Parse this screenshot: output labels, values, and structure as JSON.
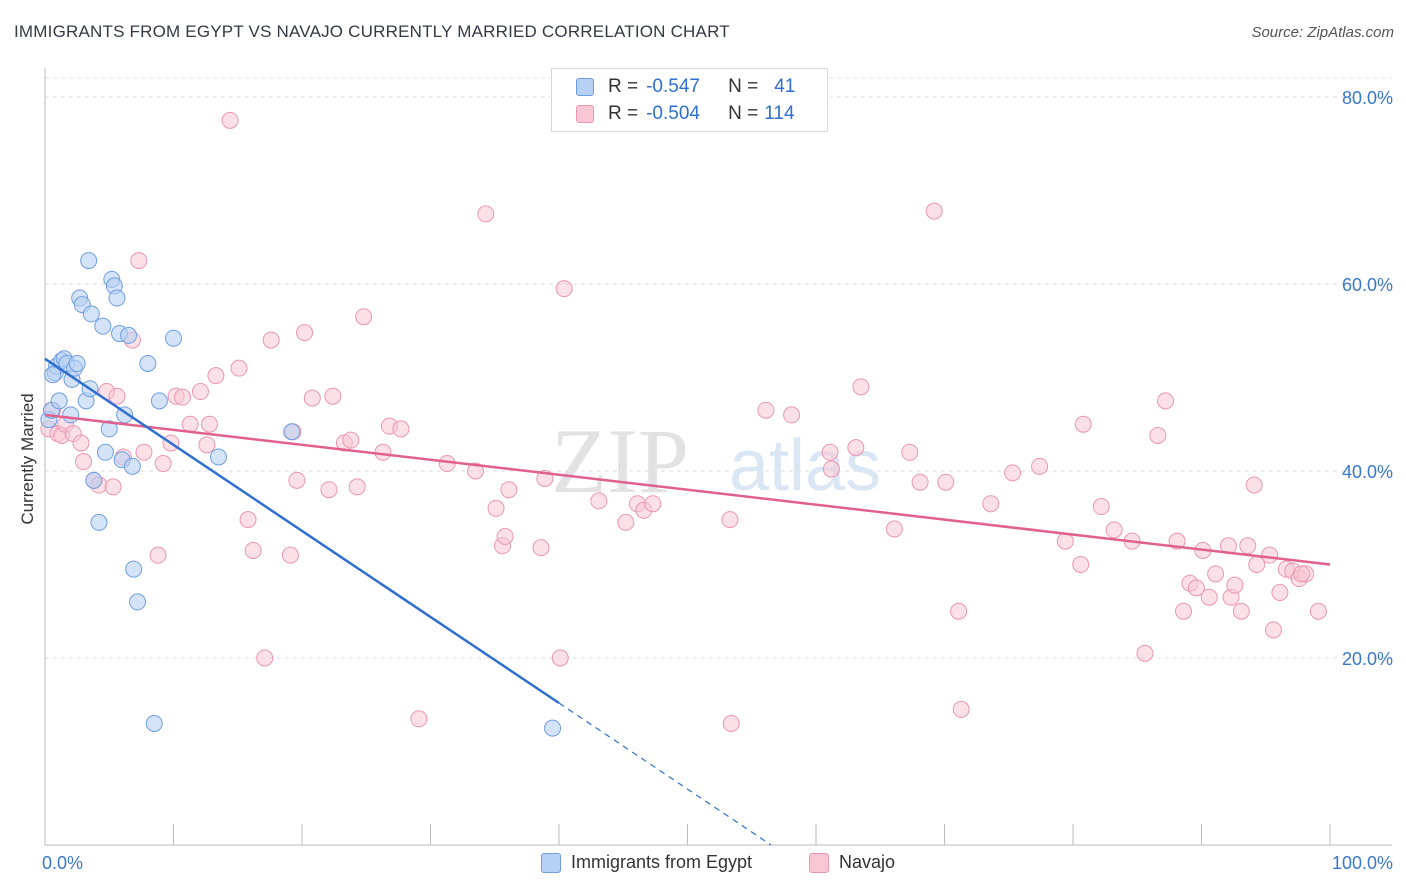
{
  "title": "IMMIGRANTS FROM EGYPT VS NAVAJO CURRENTLY MARRIED CORRELATION CHART",
  "source": "Source: ZipAtlas.com",
  "watermark": {
    "zip": "ZIP",
    "atlas": "atlas"
  },
  "legend": {
    "rows": [
      {
        "r_label": "R =",
        "r_value": "-0.547",
        "n_label": "N =",
        "n_value": "41"
      },
      {
        "r_label": "R =",
        "r_value": "-0.504",
        "n_label": "N =",
        "n_value": "114"
      }
    ]
  },
  "bottom_legend": {
    "series1": "Immigrants from Egypt",
    "series2": "Navajo"
  },
  "colors": {
    "blue_fill": "#b7d1f4",
    "blue_stroke": "#6f9ee0",
    "blue_line": "#2f6fd0",
    "pink_fill": "#f8c6d4",
    "pink_stroke": "#ea97b1",
    "pink_line": "#e0608e",
    "axis_label": "#3a78c9"
  },
  "chart_data": {
    "type": "scatter",
    "title": "IMMIGRANTS FROM EGYPT VS NAVAJO CURRENTLY MARRIED CORRELATION CHART",
    "xlabel": "",
    "ylabel": "Currently Married",
    "xlim": [
      0,
      100
    ],
    "ylim": [
      0,
      80
    ],
    "x_tick_labels": [
      "0.0%",
      "100.0%"
    ],
    "y_ticks": [
      20,
      40,
      60,
      80
    ],
    "y_tick_labels": [
      "20.0%",
      "40.0%",
      "60.0%",
      "80.0%"
    ],
    "series": [
      {
        "name": "Immigrants from Egypt",
        "r": -0.547,
        "n": 41,
        "trend": {
          "x_start": 0,
          "y_start": 52.0,
          "x_solid_end": 40,
          "x_end": 56.5,
          "y_end": 0
        },
        "points": [
          [
            0.3,
            45.5
          ],
          [
            0.5,
            46.5
          ],
          [
            0.8,
            50.5
          ],
          [
            0.9,
            51.2
          ],
          [
            1.1,
            47.5
          ],
          [
            1.3,
            51.8
          ],
          [
            1.5,
            52.0
          ],
          [
            1.7,
            51.5
          ],
          [
            2.0,
            46.0
          ],
          [
            2.1,
            49.8
          ],
          [
            2.3,
            51.0
          ],
          [
            2.5,
            51.5
          ],
          [
            2.7,
            58.5
          ],
          [
            2.9,
            57.8
          ],
          [
            3.2,
            47.5
          ],
          [
            3.4,
            62.5
          ],
          [
            3.5,
            48.8
          ],
          [
            3.6,
            56.8
          ],
          [
            3.8,
            39.0
          ],
          [
            4.2,
            34.5
          ],
          [
            4.5,
            55.5
          ],
          [
            4.7,
            42.0
          ],
          [
            5.0,
            44.5
          ],
          [
            5.2,
            60.5
          ],
          [
            5.4,
            59.8
          ],
          [
            5.6,
            58.5
          ],
          [
            5.8,
            54.7
          ],
          [
            6.0,
            41.2
          ],
          [
            6.2,
            46.0
          ],
          [
            6.5,
            54.5
          ],
          [
            6.8,
            40.5
          ],
          [
            6.9,
            29.5
          ],
          [
            7.2,
            26.0
          ],
          [
            8.0,
            51.5
          ],
          [
            8.5,
            13.0
          ],
          [
            8.9,
            47.5
          ],
          [
            10.0,
            54.2
          ],
          [
            13.5,
            41.5
          ],
          [
            19.2,
            44.2
          ],
          [
            39.5,
            12.5
          ],
          [
            0.6,
            50.3
          ]
        ]
      },
      {
        "name": "Navajo",
        "r": -0.504,
        "n": 114,
        "trend": {
          "x_start": 0,
          "y_start": 46.0,
          "x_end": 100,
          "y_end": 30.0
        },
        "points": [
          [
            0.3,
            44.5
          ],
          [
            0.6,
            46.5
          ],
          [
            1.0,
            44.0
          ],
          [
            1.3,
            43.8
          ],
          [
            1.6,
            45.0
          ],
          [
            2.2,
            44.0
          ],
          [
            2.8,
            43.0
          ],
          [
            3.0,
            41.0
          ],
          [
            3.8,
            39.0
          ],
          [
            4.2,
            38.5
          ],
          [
            4.8,
            48.5
          ],
          [
            5.3,
            38.3
          ],
          [
            5.6,
            48.0
          ],
          [
            6.1,
            41.5
          ],
          [
            6.8,
            54.0
          ],
          [
            7.3,
            62.5
          ],
          [
            7.7,
            42.0
          ],
          [
            8.8,
            31.0
          ],
          [
            9.2,
            40.8
          ],
          [
            9.8,
            43.0
          ],
          [
            10.2,
            48.0
          ],
          [
            10.7,
            47.9
          ],
          [
            11.3,
            45.0
          ],
          [
            12.1,
            48.5
          ],
          [
            12.6,
            42.8
          ],
          [
            12.8,
            45.0
          ],
          [
            13.3,
            50.2
          ],
          [
            14.4,
            77.5
          ],
          [
            15.1,
            51.0
          ],
          [
            15.8,
            34.8
          ],
          [
            16.2,
            31.5
          ],
          [
            17.1,
            20.0
          ],
          [
            17.6,
            54.0
          ],
          [
            19.1,
            31.0
          ],
          [
            19.3,
            44.2
          ],
          [
            19.6,
            39.0
          ],
          [
            20.2,
            54.8
          ],
          [
            20.8,
            47.8
          ],
          [
            22.1,
            38.0
          ],
          [
            22.4,
            48.0
          ],
          [
            23.3,
            43.0
          ],
          [
            23.8,
            43.3
          ],
          [
            24.3,
            38.3
          ],
          [
            24.8,
            56.5
          ],
          [
            26.3,
            42.0
          ],
          [
            26.8,
            44.8
          ],
          [
            27.7,
            44.5
          ],
          [
            29.1,
            13.5
          ],
          [
            31.3,
            40.8
          ],
          [
            33.5,
            40.0
          ],
          [
            34.3,
            67.5
          ],
          [
            35.1,
            36.0
          ],
          [
            35.6,
            32.0
          ],
          [
            35.8,
            33.0
          ],
          [
            36.1,
            38.0
          ],
          [
            38.6,
            31.8
          ],
          [
            38.9,
            39.2
          ],
          [
            40.1,
            20.0
          ],
          [
            40.4,
            59.5
          ],
          [
            43.1,
            36.8
          ],
          [
            45.2,
            34.5
          ],
          [
            46.1,
            36.5
          ],
          [
            46.6,
            35.8
          ],
          [
            47.3,
            36.5
          ],
          [
            53.3,
            34.8
          ],
          [
            53.4,
            13.0
          ],
          [
            56.1,
            46.5
          ],
          [
            58.1,
            46.0
          ],
          [
            61.1,
            42.0
          ],
          [
            61.2,
            40.2
          ],
          [
            63.1,
            42.5
          ],
          [
            63.5,
            49.0
          ],
          [
            66.1,
            33.8
          ],
          [
            67.3,
            42.0
          ],
          [
            68.1,
            38.8
          ],
          [
            69.2,
            67.8
          ],
          [
            70.1,
            38.8
          ],
          [
            71.1,
            25.0
          ],
          [
            71.3,
            14.5
          ],
          [
            73.6,
            36.5
          ],
          [
            75.3,
            39.8
          ],
          [
            77.4,
            40.5
          ],
          [
            79.4,
            32.5
          ],
          [
            80.6,
            30.0
          ],
          [
            80.8,
            45.0
          ],
          [
            82.2,
            36.2
          ],
          [
            83.2,
            33.7
          ],
          [
            84.6,
            32.5
          ],
          [
            85.6,
            20.5
          ],
          [
            86.6,
            43.8
          ],
          [
            87.2,
            47.5
          ],
          [
            88.1,
            32.5
          ],
          [
            88.6,
            25.0
          ],
          [
            89.1,
            28.0
          ],
          [
            89.6,
            27.5
          ],
          [
            90.1,
            31.5
          ],
          [
            90.6,
            26.5
          ],
          [
            91.1,
            29.0
          ],
          [
            92.1,
            32.0
          ],
          [
            92.3,
            26.5
          ],
          [
            92.6,
            27.8
          ],
          [
            93.1,
            25.0
          ],
          [
            93.6,
            32.0
          ],
          [
            94.1,
            38.5
          ],
          [
            94.3,
            30.0
          ],
          [
            95.3,
            31.0
          ],
          [
            95.6,
            23.0
          ],
          [
            96.1,
            27.0
          ],
          [
            96.6,
            29.5
          ],
          [
            97.1,
            29.3
          ],
          [
            97.6,
            28.5
          ],
          [
            98.1,
            29.0
          ],
          [
            99.1,
            25.0
          ],
          [
            97.8,
            29.0
          ]
        ]
      }
    ]
  }
}
